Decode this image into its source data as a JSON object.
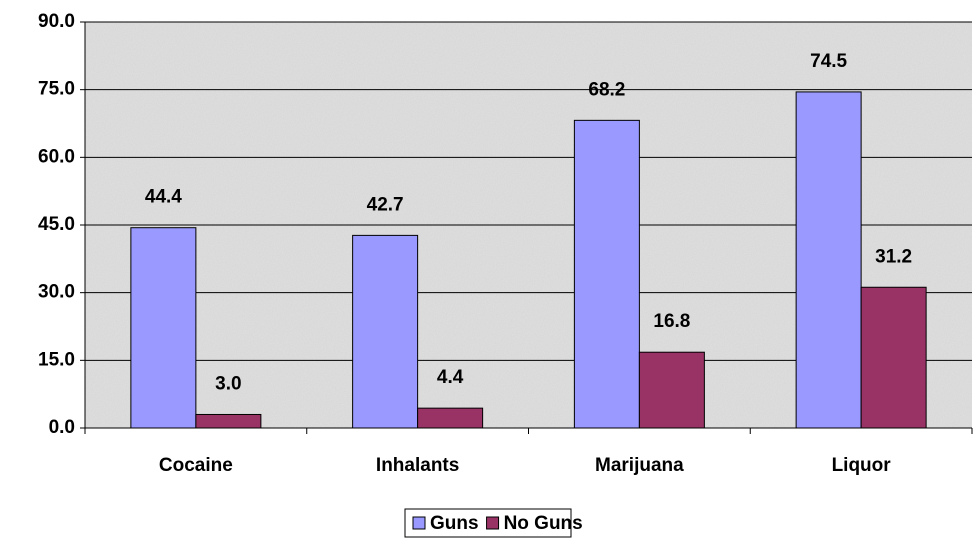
{
  "chart_data": {
    "type": "bar",
    "categories": [
      "Cocaine",
      "Inhalants",
      "Marijuana",
      "Liquor"
    ],
    "series": [
      {
        "name": "Guns",
        "color": "#9999ff",
        "values": [
          44.4,
          42.7,
          68.2,
          74.5
        ],
        "value_labels": [
          "44.4",
          "42.7",
          "68.2",
          "74.5"
        ]
      },
      {
        "name": "No Guns",
        "color": "#993366",
        "values": [
          3.0,
          4.4,
          16.8,
          31.2
        ],
        "value_labels": [
          "3.0",
          "4.4",
          "16.8",
          "31.2"
        ]
      }
    ],
    "ylim": [
      0,
      90
    ],
    "yticks": [
      {
        "value": 0,
        "label": "0.0"
      },
      {
        "value": 15,
        "label": "15.0"
      },
      {
        "value": 30,
        "label": "30.0"
      },
      {
        "value": 45,
        "label": "45.0"
      },
      {
        "value": 60,
        "label": "60.0"
      },
      {
        "value": 75,
        "label": "75.0"
      },
      {
        "value": 90,
        "label": "90.0"
      }
    ],
    "grid": true,
    "legend": "bottom"
  }
}
